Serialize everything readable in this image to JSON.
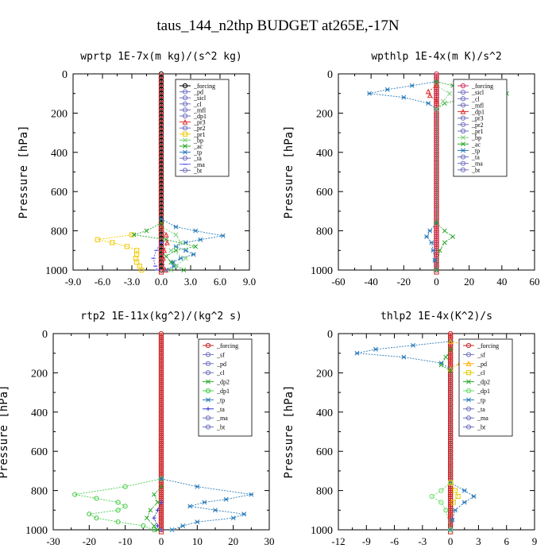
{
  "figure": {
    "title": "taus_144_n2thp  BUDGET at265E,-17N"
  },
  "chart_data": [
    {
      "type": "line",
      "title": "wprtp  1E-7x(m kg)/(s^2 kg)",
      "ylabel": "Pressure [hPa]",
      "xlim": [
        -9,
        9
      ],
      "ylim": [
        1000,
        0
      ],
      "xticks": [
        "-9.0",
        "-6.0",
        "-3.0",
        "0.0",
        "3.0",
        "6.0",
        "9.0"
      ],
      "yticks": [
        "0",
        "200",
        "400",
        "600",
        "800",
        "1000"
      ],
      "legend": [
        "_forcing",
        "_pd",
        "_sicl",
        "_cl",
        "_mfl",
        "_dp1",
        "_pr3",
        "_pr2",
        "_pr1",
        "_bp",
        "_ac",
        "_tp",
        "_ta",
        "_ma",
        "_bt"
      ],
      "series": [
        {
          "name": "_forcing",
          "color": "#000000",
          "marker": "circle",
          "p": [
            0,
            1000
          ],
          "x": [
            0,
            0
          ]
        },
        {
          "name": "_pr1",
          "color": "#f0c800",
          "marker": "square",
          "p": [
            820,
            845,
            860,
            880,
            900,
            920,
            940,
            960,
            980,
            1000
          ],
          "x": [
            -3.0,
            -6.5,
            -5.0,
            -3.5,
            -2.5,
            -2.5,
            -2.6,
            -2.5,
            -2.2,
            -2.0
          ]
        },
        {
          "name": "_tp",
          "color": "#2a7ab8",
          "marker": "star",
          "p": [
            740,
            780,
            800,
            825,
            845,
            860,
            880,
            900,
            920,
            940,
            960,
            980,
            1000
          ],
          "x": [
            0,
            1.5,
            3.5,
            6.3,
            4.0,
            2.5,
            1.5,
            2.5,
            3.3,
            2.0,
            1.2,
            1.3,
            0.5
          ]
        },
        {
          "name": "_ac",
          "color": "#2aa52a",
          "marker": "x",
          "p": [
            760,
            800,
            820,
            845,
            880,
            900,
            930,
            960,
            1000
          ],
          "x": [
            0,
            -1.5,
            -2.8,
            0.5,
            3.5,
            1.5,
            0.5,
            1.0,
            2.3
          ]
        },
        {
          "name": "_bp",
          "color": "#7ad07a",
          "marker": "x",
          "p": [
            780,
            820,
            860,
            900,
            940,
            980,
            1000
          ],
          "x": [
            0,
            1.5,
            2.0,
            1.0,
            2.5,
            1.5,
            1.0
          ]
        },
        {
          "name": "_pr3",
          "color": "#e03030",
          "marker": "triangle",
          "p": [
            780,
            820,
            860,
            900,
            940,
            1000
          ],
          "x": [
            0,
            0.5,
            0.6,
            0.3,
            0.2,
            0.4
          ]
        },
        {
          "name": "_ma",
          "color": "#5555ff",
          "marker": "dash",
          "p": [
            860,
            900,
            940,
            980,
            1000
          ],
          "x": [
            0,
            -0.5,
            -0.8,
            -0.6,
            -0.4
          ]
        }
      ]
    },
    {
      "type": "line",
      "title": "wpthlp  1E-4x(m K)/s^2",
      "ylabel": "Pressure [hPa]",
      "xlim": [
        -60,
        60
      ],
      "ylim": [
        1000,
        0
      ],
      "xticks": [
        "-60",
        "-40",
        "-20",
        "0",
        "20",
        "40",
        "60"
      ],
      "yticks": [
        "0",
        "200",
        "400",
        "600",
        "800",
        "1000"
      ],
      "legend": [
        "_forcing",
        "_sicl",
        "_cl",
        "_mfl",
        "_dp1",
        "_pr3",
        "_pr2",
        "_pr1",
        "_bp",
        "_ac",
        "_tp",
        "_ta",
        "_ma",
        "_bt"
      ],
      "series": [
        {
          "name": "_forcing",
          "color": "#d03060",
          "marker": "circle",
          "p": [
            0,
            1000
          ],
          "x": [
            0,
            0
          ]
        },
        {
          "name": "_tp",
          "color": "#2a7ab8",
          "marker": "star",
          "p": [
            40,
            60,
            80,
            100,
            120,
            150,
            180,
            760,
            800,
            830,
            860,
            900,
            950,
            1000
          ],
          "x": [
            0,
            -15,
            -30,
            -41,
            -20,
            -5,
            0,
            0,
            -4,
            -6,
            -3,
            -2,
            -1,
            0
          ]
        },
        {
          "name": "_ac",
          "color": "#2aa52a",
          "marker": "x",
          "p": [
            40,
            60,
            80,
            100,
            120,
            150,
            180,
            760,
            800,
            830,
            860,
            900,
            1000
          ],
          "x": [
            0,
            10,
            35,
            43,
            20,
            5,
            0,
            0,
            5,
            10,
            5,
            2,
            0
          ]
        },
        {
          "name": "_bp",
          "color": "#7ad07a",
          "marker": "x",
          "p": [
            60,
            100,
            140,
            180
          ],
          "x": [
            0,
            8,
            4,
            0
          ]
        },
        {
          "name": "_dp1",
          "color": "#e03030",
          "marker": "triangle",
          "p": [
            60,
            90,
            110,
            140
          ],
          "x": [
            0,
            -5,
            -4,
            0
          ]
        }
      ]
    },
    {
      "type": "line",
      "title": "rtp2  1E-11x(kg^2)/(kg^2 s)",
      "ylabel": "Pressure [hPa]",
      "xlim": [
        -30,
        30
      ],
      "ylim": [
        1000,
        0
      ],
      "xticks": [
        "-30",
        "-20",
        "-10",
        "0",
        "10",
        "20",
        "30"
      ],
      "yticks": [
        "0",
        "200",
        "400",
        "600",
        "800",
        "1000"
      ],
      "legend": [
        "_forcing",
        "_sf",
        "_pd",
        "_cl",
        "_dp2",
        "_dp1",
        "_tp",
        "_ta",
        "_ma",
        "_bt"
      ],
      "series": [
        {
          "name": "_forcing",
          "color": "#cc2222",
          "marker": "circle",
          "p": [
            0,
            1000
          ],
          "x": [
            0,
            0
          ]
        },
        {
          "name": "_dp1",
          "color": "#44cc44",
          "marker": "circle",
          "p": [
            740,
            780,
            820,
            840,
            860,
            880,
            900,
            920,
            940,
            960,
            980,
            1000
          ],
          "x": [
            0,
            -10,
            -24,
            -18,
            -12,
            -10,
            -12,
            -20,
            -18,
            -12,
            -5,
            -2
          ]
        },
        {
          "name": "_tp",
          "color": "#2a7ab8",
          "marker": "star",
          "p": [
            740,
            780,
            820,
            845,
            860,
            880,
            900,
            920,
            940,
            960,
            980,
            1000
          ],
          "x": [
            0,
            10,
            25,
            18,
            12,
            8,
            15,
            23,
            20,
            10,
            6,
            3
          ]
        },
        {
          "name": "_dp2",
          "color": "#2aa52a",
          "marker": "x",
          "p": [
            780,
            820,
            860,
            900,
            940,
            980,
            1000
          ],
          "x": [
            0,
            -2,
            -1,
            -3,
            -4,
            -2,
            -1
          ]
        },
        {
          "name": "_ta",
          "color": "#3333cc",
          "marker": "plus",
          "p": [
            860,
            900,
            940,
            980,
            1000
          ],
          "x": [
            0,
            -1,
            -2,
            -1,
            0
          ]
        }
      ]
    },
    {
      "type": "line",
      "title": "thlp2  1E-4x(K^2)/s",
      "ylabel": "Pressure [hPa]",
      "xlim": [
        -12,
        9
      ],
      "ylim": [
        1000,
        0
      ],
      "xticks": [
        "-12",
        "-9",
        "-6",
        "-3",
        "0",
        "3",
        "6",
        "9"
      ],
      "yticks": [
        "0",
        "200",
        "400",
        "600",
        "800",
        "1000"
      ],
      "legend": [
        "_forcing",
        "_sf",
        "_pd",
        "_cl",
        "_dp2",
        "_dp1",
        "_tp",
        "_ta",
        "_ma",
        "_bt"
      ],
      "series": [
        {
          "name": "_forcing",
          "color": "#cc2222",
          "marker": "circle",
          "p": [
            0,
            1000
          ],
          "x": [
            0,
            0
          ]
        },
        {
          "name": "_tp",
          "color": "#2a7ab8",
          "marker": "star",
          "p": [
            40,
            60,
            80,
            100,
            120,
            150,
            180,
            760,
            800,
            830,
            860,
            900,
            950,
            1000
          ],
          "x": [
            0,
            -4,
            -8,
            -10,
            -5,
            -1,
            0,
            0,
            1.5,
            2.5,
            1.5,
            0.5,
            0.2,
            0
          ]
        },
        {
          "name": "_pd",
          "color": "#ffaa00",
          "marker": "triangle",
          "p": [
            40,
            60,
            80,
            100,
            120,
            150,
            180
          ],
          "x": [
            0,
            2,
            5,
            6,
            4,
            1,
            0
          ]
        },
        {
          "name": "_dp1",
          "color": "#66dd66",
          "marker": "circle",
          "p": [
            760,
            800,
            830,
            860,
            900,
            1000
          ],
          "x": [
            0,
            -1,
            -2,
            -1,
            -0.5,
            0
          ]
        },
        {
          "name": "_cl",
          "color": "#ddcc00",
          "marker": "square",
          "p": [
            760,
            800,
            830,
            860
          ],
          "x": [
            0,
            0.5,
            0.8,
            0.3
          ]
        },
        {
          "name": "_dp2",
          "color": "#2aa52a",
          "marker": "x",
          "p": [
            80,
            120,
            160,
            190
          ],
          "x": [
            0,
            -0.5,
            -1.0,
            0
          ]
        }
      ]
    }
  ]
}
